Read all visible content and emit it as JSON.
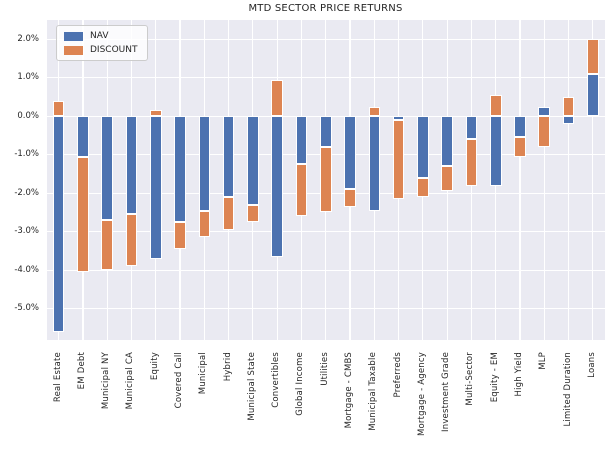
{
  "chart_data": {
    "type": "bar",
    "stacked": true,
    "orientation": "vertical",
    "title": "MTD SECTOR PRICE RETURNS",
    "xlabel": "",
    "ylabel": "",
    "unit": "%",
    "grid": true,
    "plot_background": "#eaeaf2",
    "grid_color": "#ffffff",
    "legend_position": "upper left",
    "ylim": [
      -5.8,
      2.5
    ],
    "y_tick_values": [
      2,
      1,
      0,
      -1,
      -2,
      -3,
      -4,
      -5
    ],
    "y_tick_labels": [
      "2.0%",
      "1.0%",
      "0.0%",
      "-1.0%",
      "-2.0%",
      "-3.0%",
      "-4.0%",
      "-5.0%"
    ],
    "categories": [
      "Real Estate",
      "EM Debt",
      "Municipal NY",
      "Municipal CA",
      "Equity",
      "Covered Call",
      "Municipal",
      "Hybrid",
      "Municipal State",
      "Convertibles",
      "Global Income",
      "Utilities",
      "Mortgage - CMBS",
      "Municipal Taxable",
      "Preferreds",
      "Mortgage - Agency",
      "Investment Grade",
      "Multi-Sector",
      "Equity - EM",
      "High Yield",
      "MLP",
      "Limited Duration",
      "Loans"
    ],
    "series": [
      {
        "name": "NAV",
        "color": "#4c72b0",
        "values": [
          -5.6,
          -1.05,
          -2.7,
          -2.55,
          -3.7,
          -2.75,
          -2.45,
          -2.1,
          -2.3,
          -3.65,
          -1.25,
          -0.8,
          -1.9,
          -2.45,
          -0.1,
          -1.6,
          -1.3,
          -0.6,
          -1.8,
          -0.55,
          0.25,
          -0.2,
          1.1
        ]
      },
      {
        "name": "DISCOUNT",
        "color": "#dd8452",
        "values": [
          0.4,
          -3.0,
          -1.3,
          -1.35,
          0.15,
          -0.7,
          -0.7,
          -0.85,
          -0.45,
          0.95,
          -1.35,
          -1.7,
          -0.45,
          0.25,
          -2.05,
          -0.5,
          -0.65,
          -1.2,
          0.55,
          -0.5,
          -0.8,
          0.5,
          0.9
        ]
      }
    ]
  },
  "legend": {
    "items": [
      {
        "label": "NAV",
        "color": "#4c72b0"
      },
      {
        "label": "DISCOUNT",
        "color": "#dd8452"
      }
    ]
  }
}
